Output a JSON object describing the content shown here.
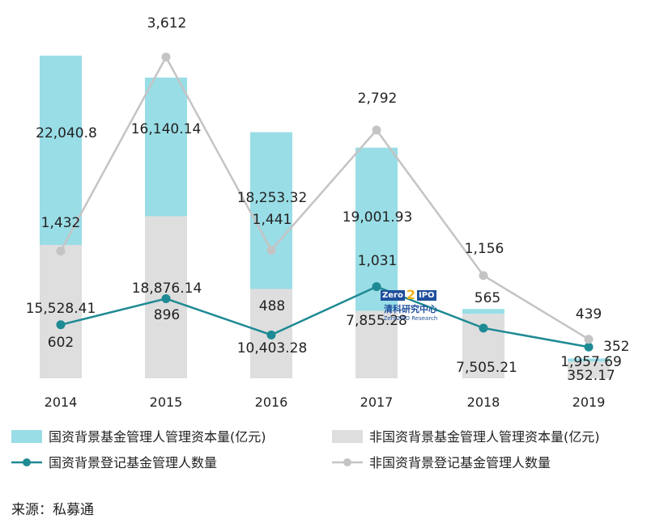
{
  "chart_data": {
    "type": "bar",
    "categories": [
      "2014",
      "2015",
      "2016",
      "2017",
      "2018",
      "2019"
    ],
    "stacked_bars": [
      {
        "name": "国资背景基金管理人管理资本量(亿元)",
        "color": "#99dde6",
        "values": [
          22040.8,
          16140.14,
          18253.32,
          19001.93,
          565,
          352.17
        ],
        "labels": [
          "22,040.8",
          "16,140.14",
          "18,253.32",
          "19,001.93",
          "565",
          "352.17"
        ]
      },
      {
        "name": "非国资背景基金管理人管理资本量(亿元)",
        "color": "#dedede",
        "values": [
          15528.41,
          18876.14,
          10403.28,
          7855.28,
          7505.21,
          1957.69
        ],
        "labels": [
          "15,528.41",
          "18,876.14",
          "10,403.28",
          "7,855.28",
          "7,505.21",
          "1,957.69"
        ]
      }
    ],
    "lines": [
      {
        "name": "国资背景登记基金管理人数量",
        "color": "#1e8a94",
        "values": [
          602,
          896,
          488,
          1031,
          565,
          352
        ],
        "labels": [
          "602",
          "896",
          "488",
          "1,031",
          "",
          "352"
        ]
      },
      {
        "name": "非国资背景登记基金管理人数量",
        "color": "#c4c4c4",
        "values": [
          1432,
          3612,
          1441,
          2792,
          1156,
          439
        ],
        "labels": [
          "1,432",
          "3,612",
          "1,441",
          "2,792",
          "1,156",
          "439"
        ]
      }
    ]
  },
  "legend": {
    "item1": "国资背景基金管理人管理资本量(亿元)",
    "item2": "非国资背景基金管理人管理资本量(亿元)",
    "item3": "国资背景登记基金管理人数量",
    "item4": "非国资背景登记基金管理人数量"
  },
  "source": "来源：私募通",
  "watermark": {
    "brand_a": "Zero",
    "brand_b": "IPO",
    "brand_num": "2",
    "name_cn": "清科研究中心",
    "name_en": "Zero2IPO Research"
  }
}
